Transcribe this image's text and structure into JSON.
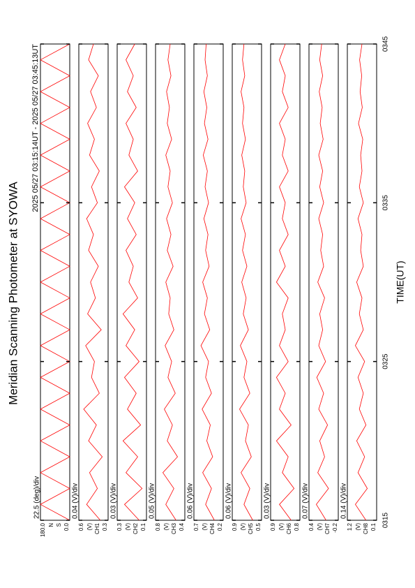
{
  "chart_data": {
    "type": "line",
    "title": "Meridian Scanning Photometer at SYOWA",
    "subtitle": "2025 05/27 03:15:14UT - 2025 05/27 03:45:13UT",
    "xlabel": "TIME(UT)",
    "color": "#ff0000",
    "x": [
      0,
      1,
      2,
      3,
      4,
      5,
      6,
      7,
      8,
      9,
      10,
      11,
      12,
      13,
      14,
      15,
      16,
      17,
      18,
      19,
      20,
      21,
      22,
      23,
      24,
      25,
      26,
      27,
      28,
      29,
      30
    ],
    "xlim": [
      0,
      30
    ],
    "xticks": [
      {
        "value": 0,
        "label": "0315"
      },
      {
        "value": 10,
        "label": "0325"
      },
      {
        "value": 20,
        "label": "0335"
      },
      {
        "value": 30,
        "label": "0345"
      }
    ],
    "panels": [
      {
        "annotation": "22.5 (deg)/div",
        "labels": [
          "N",
          "S"
        ],
        "ylim": [
          0,
          180
        ],
        "yticks": [
          {
            "value": 0,
            "label": "0.0"
          },
          {
            "value": 180,
            "label": "180.0"
          }
        ],
        "values": [
          0,
          180,
          0,
          180,
          0,
          180,
          0,
          180,
          0,
          180,
          0,
          180,
          0,
          180,
          0,
          180,
          0,
          180,
          0,
          180,
          0,
          180,
          0,
          180,
          0,
          180,
          0,
          180,
          0,
          180,
          0
        ]
      },
      {
        "annotation": "0.04 (V)/div",
        "labels": [
          "(V)",
          "CH1"
        ],
        "ylim": [
          0.3,
          0.6
        ],
        "yticks": [
          0.3,
          0.6
        ],
        "values": [
          0.38,
          0.52,
          0.41,
          0.49,
          0.36,
          0.5,
          0.42,
          0.55,
          0.39,
          0.47,
          0.44,
          0.53,
          0.37,
          0.51,
          0.43,
          0.48,
          0.4,
          0.5,
          0.45,
          0.52,
          0.41,
          0.47,
          0.39,
          0.49,
          0.44,
          0.51,
          0.42,
          0.48,
          0.4,
          0.5,
          0.45
        ]
      },
      {
        "annotation": "0.03 (V)/div",
        "labels": [
          "(V)",
          "CH2"
        ],
        "ylim": [
          0.1,
          0.3
        ],
        "yticks": [
          0.1,
          0.3
        ],
        "values": [
          0.15,
          0.25,
          0.13,
          0.24,
          0.16,
          0.26,
          0.14,
          0.23,
          0.17,
          0.25,
          0.15,
          0.24,
          0.18,
          0.26,
          0.16,
          0.22,
          0.19,
          0.24,
          0.17,
          0.23,
          0.18,
          0.25,
          0.16,
          0.22,
          0.19,
          0.24,
          0.17,
          0.23,
          0.19,
          0.24,
          0.18
        ]
      },
      {
        "annotation": "0.05 (V)/div",
        "labels": [
          "(V)",
          "CH3"
        ],
        "ylim": [
          0.4,
          0.8
        ],
        "yticks": [
          0.4,
          0.8
        ],
        "values": [
          0.52,
          0.66,
          0.55,
          0.7,
          0.5,
          0.64,
          0.57,
          0.68,
          0.53,
          0.63,
          0.58,
          0.67,
          0.55,
          0.62,
          0.6,
          0.66,
          0.56,
          0.64,
          0.59,
          0.65,
          0.57,
          0.63,
          0.6,
          0.66,
          0.58,
          0.64,
          0.61,
          0.65,
          0.59,
          0.63,
          0.6
        ]
      },
      {
        "annotation": "0.06 (V)/div",
        "labels": [
          "(V)",
          "CH4"
        ],
        "ylim": [
          0.2,
          0.7
        ],
        "yticks": [
          0.2,
          0.7
        ],
        "values": [
          0.35,
          0.5,
          0.4,
          0.55,
          0.38,
          0.48,
          0.42,
          0.56,
          0.4,
          0.5,
          0.45,
          0.58,
          0.43,
          0.52,
          0.47,
          0.55,
          0.44,
          0.5,
          0.46,
          0.53,
          0.45,
          0.51,
          0.47,
          0.54,
          0.46,
          0.52,
          0.48,
          0.53,
          0.47,
          0.51,
          0.49
        ]
      },
      {
        "annotation": "0.06 (V)/div",
        "labels": [
          "(V)",
          "CH5"
        ],
        "ylim": [
          0.5,
          0.9
        ],
        "yticks": [
          0.5,
          0.9
        ],
        "values": [
          0.62,
          0.74,
          0.66,
          0.78,
          0.64,
          0.72,
          0.68,
          0.8,
          0.66,
          0.74,
          0.7,
          0.79,
          0.68,
          0.75,
          0.71,
          0.77,
          0.7,
          0.76,
          0.72,
          0.78,
          0.71,
          0.75,
          0.73,
          0.77,
          0.72,
          0.76,
          0.74,
          0.78,
          0.73,
          0.76,
          0.74
        ]
      },
      {
        "annotation": "0.03 (V)/div",
        "labels": [
          "(V)",
          "CH6"
        ],
        "ylim": [
          0.8,
          0.9
        ],
        "yticks": [
          0.8,
          0.9
        ],
        "values": [
          0.83,
          0.87,
          0.82,
          0.86,
          0.84,
          0.88,
          0.83,
          0.87,
          0.85,
          0.88,
          0.84,
          0.87,
          0.85,
          0.86,
          0.84,
          0.88,
          0.85,
          0.87,
          0.84,
          0.86,
          0.85,
          0.87,
          0.84,
          0.86,
          0.85,
          0.87,
          0.84,
          0.86,
          0.85,
          0.87,
          0.85
        ]
      },
      {
        "annotation": "0.07 (V)/div",
        "labels": [
          "(V)",
          "CH7"
        ],
        "ylim": [
          -0.2,
          0.4
        ],
        "yticks": [
          -0.2,
          0.4
        ],
        "values": [
          0.05,
          0.25,
          0.0,
          0.22,
          0.08,
          0.18,
          0.02,
          0.2,
          0.1,
          0.24,
          0.06,
          0.2,
          0.12,
          0.18,
          0.08,
          0.22,
          0.1,
          0.16,
          0.12,
          0.2,
          0.1,
          0.18,
          0.12,
          0.2,
          0.11,
          0.17,
          0.13,
          0.19,
          0.12,
          0.18,
          0.14
        ]
      },
      {
        "annotation": "0.14 (V)/div",
        "labels": [
          "(V)",
          "CH8"
        ],
        "ylim": [
          0.1,
          1.2
        ],
        "yticks": [
          0.1,
          1.2
        ],
        "values": [
          0.5,
          0.9,
          0.45,
          0.8,
          0.55,
          0.85,
          0.5,
          0.75,
          0.6,
          0.8,
          0.55,
          0.9,
          0.6,
          0.75,
          0.65,
          0.85,
          0.6,
          0.7,
          0.65,
          0.8,
          0.6,
          0.75,
          0.65,
          0.7,
          0.62,
          0.78,
          0.64,
          0.72,
          0.66,
          0.74,
          0.65
        ]
      }
    ]
  }
}
